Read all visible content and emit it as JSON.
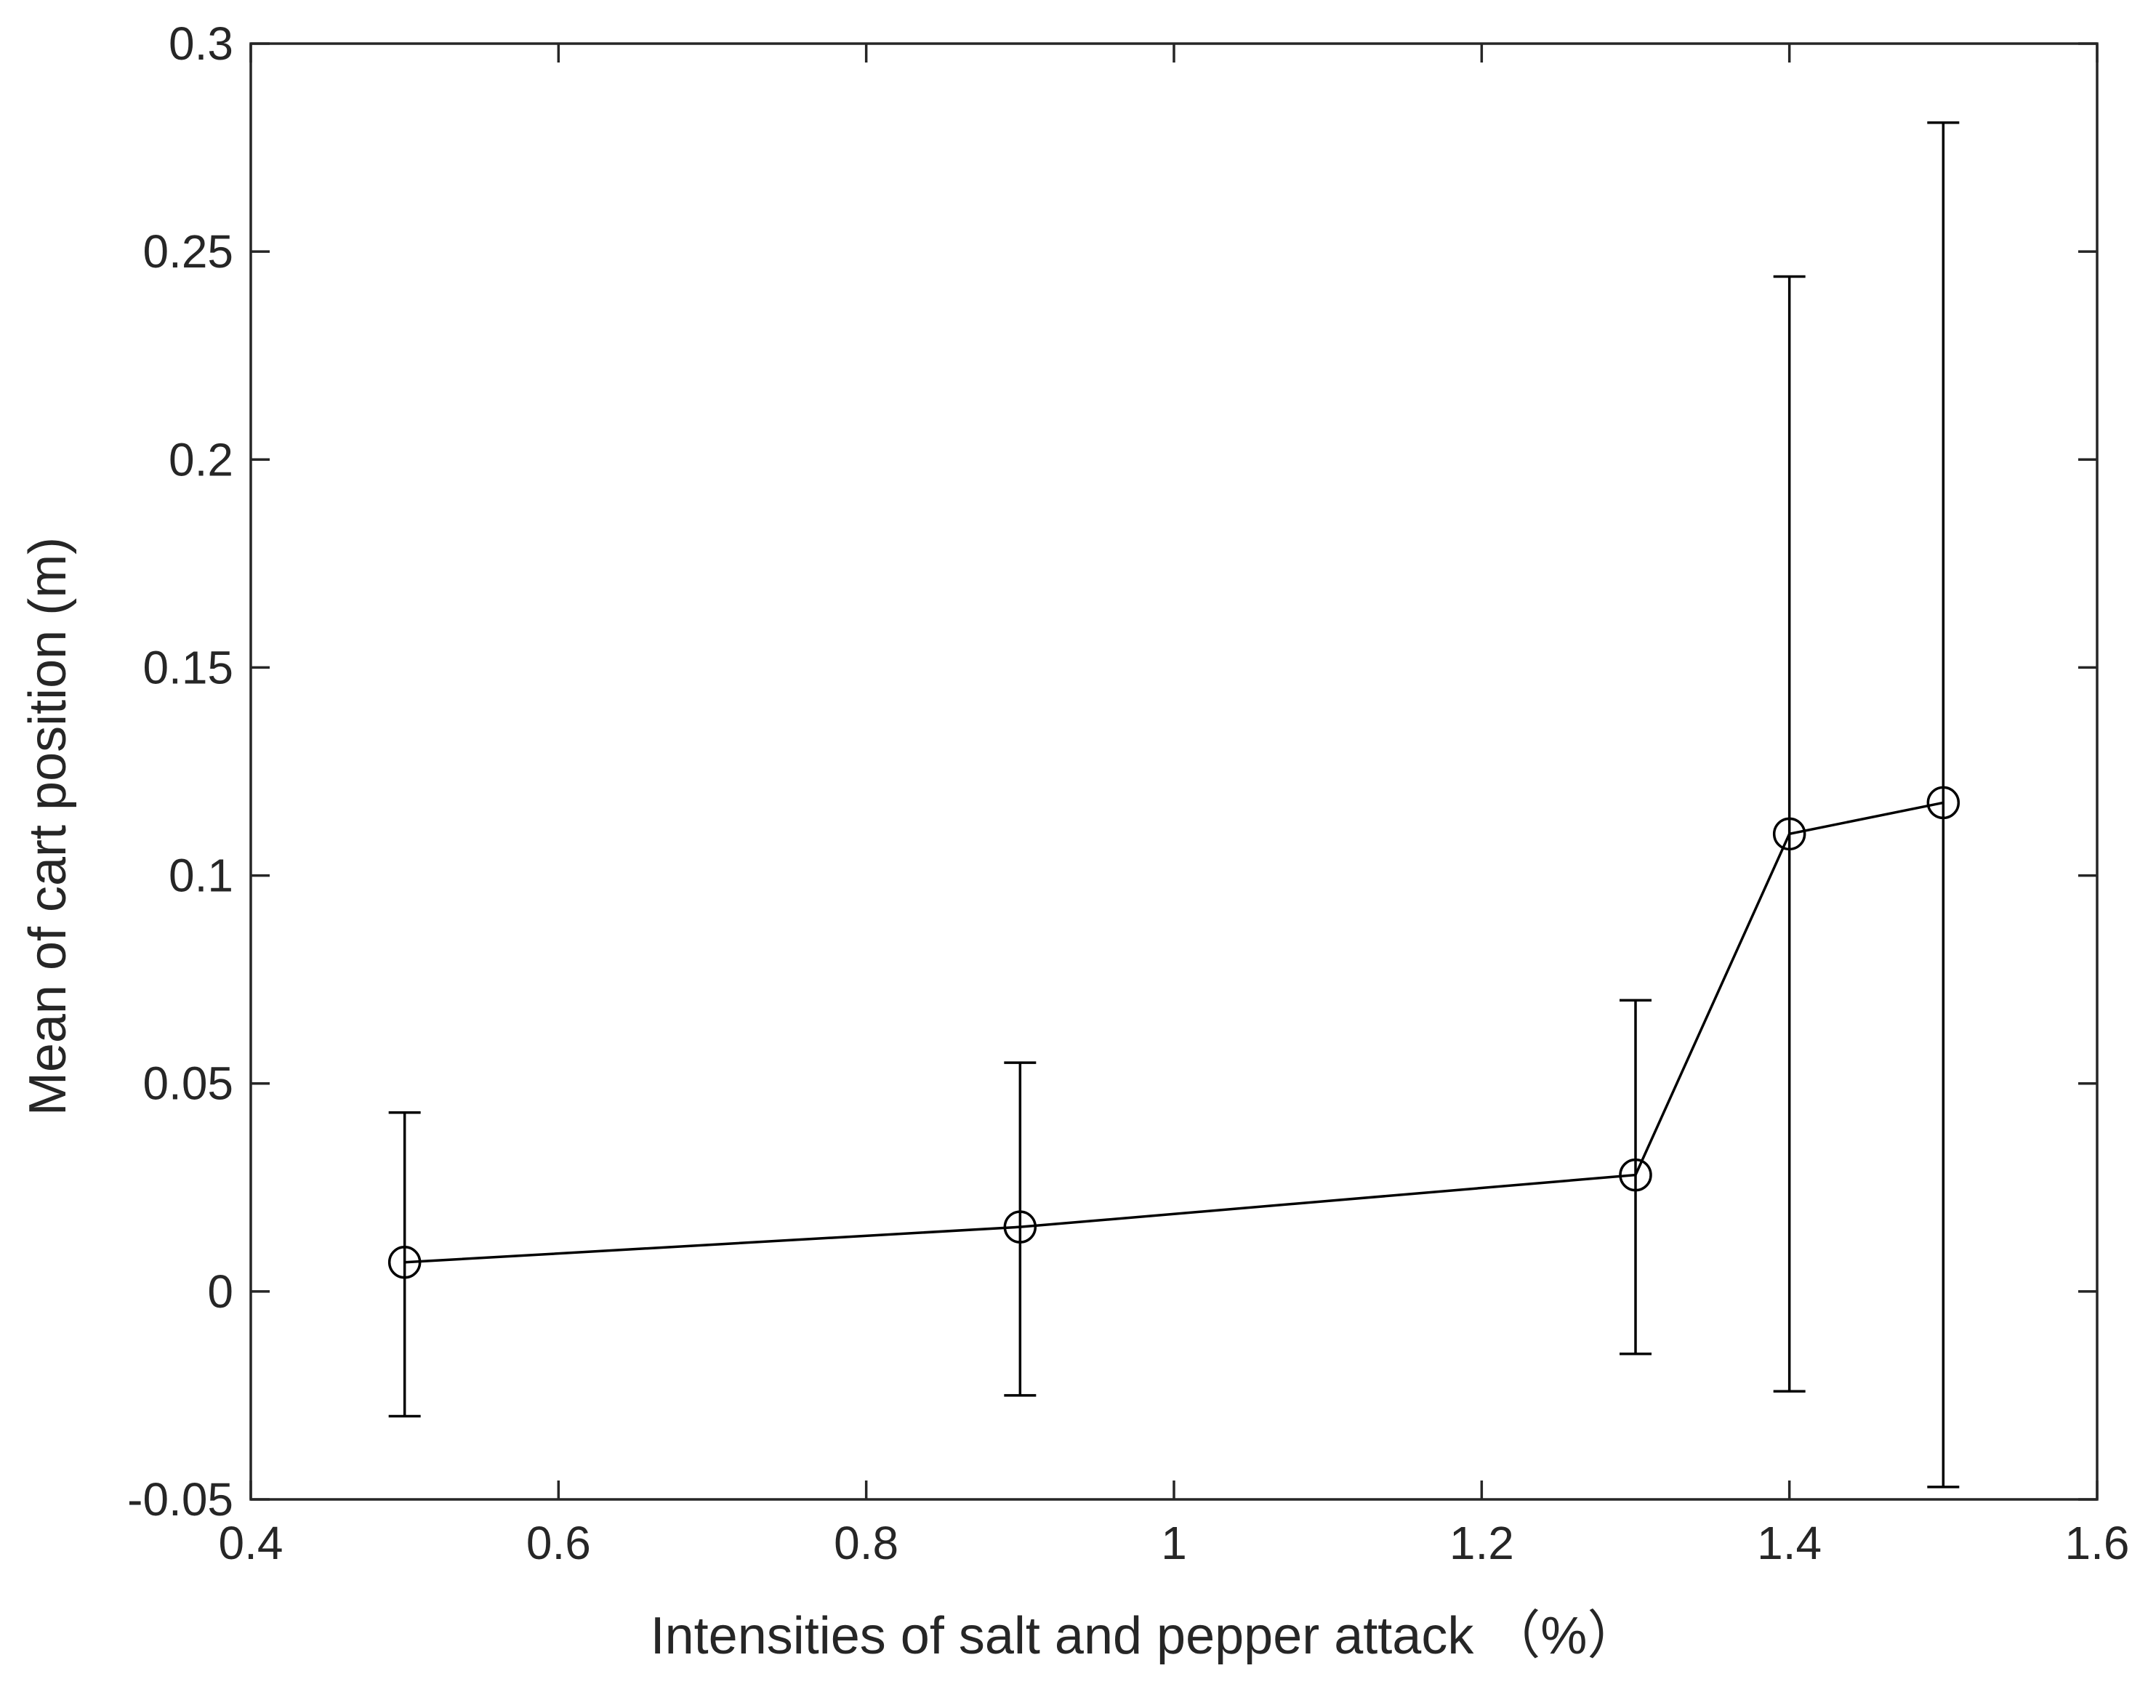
{
  "chart_data": {
    "type": "line",
    "title": "",
    "xlabel": "Intensities of salt and pepper attack （%）",
    "ylabel": "Mean of cart position (m)",
    "xlim": [
      0.4,
      1.6
    ],
    "ylim": [
      -0.05,
      0.3
    ],
    "xticks": [
      0.4,
      0.6,
      0.8,
      1.0,
      1.2,
      1.4,
      1.6
    ],
    "xtick_labels": [
      "0.4",
      "0.6",
      "0.8",
      "1",
      "1.2",
      "1.4",
      "1.6"
    ],
    "yticks": [
      -0.05,
      0,
      0.05,
      0.1,
      0.15,
      0.2,
      0.25,
      0.3
    ],
    "ytick_labels": [
      "-0.05",
      "0",
      "0.05",
      "0.1",
      "0.15",
      "0.2",
      "0.25",
      "0.3"
    ],
    "grid": false,
    "marker": "open-circle",
    "series": [
      {
        "x": [
          0.5,
          0.9,
          1.3,
          1.4,
          1.5
        ],
        "y": [
          0.007,
          0.0155,
          0.028,
          0.11,
          0.1175
        ],
        "err_low": [
          -0.03,
          -0.025,
          -0.015,
          -0.024,
          -0.047
        ],
        "err_high": [
          0.043,
          0.055,
          0.07,
          0.244,
          0.281
        ]
      }
    ],
    "colors": {
      "axes": "#262626",
      "series": "#000000"
    }
  }
}
